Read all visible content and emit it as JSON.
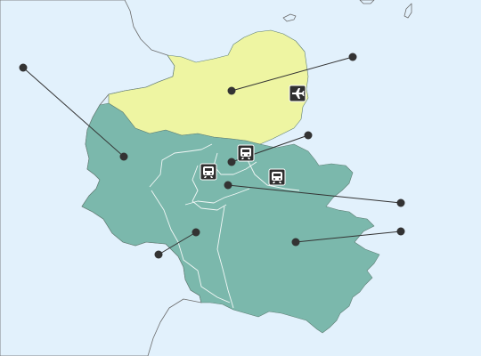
{
  "colors": {
    "sea": "#e2f1fc",
    "land_outside": "#ffffff",
    "region_north": "#eef5a2",
    "region_main": "#7bb8ac",
    "leader": "#333333",
    "icon_background": "#2f2f2f",
    "icon_foreground": "#ffffff"
  },
  "icons": {
    "airport": "airplane-icon",
    "station": "train-icon"
  },
  "callouts_count_note": "",
  "regions": [
    {
      "id": "north",
      "fill_key": "region_north"
    },
    {
      "id": "main",
      "fill_key": "region_main"
    }
  ]
}
